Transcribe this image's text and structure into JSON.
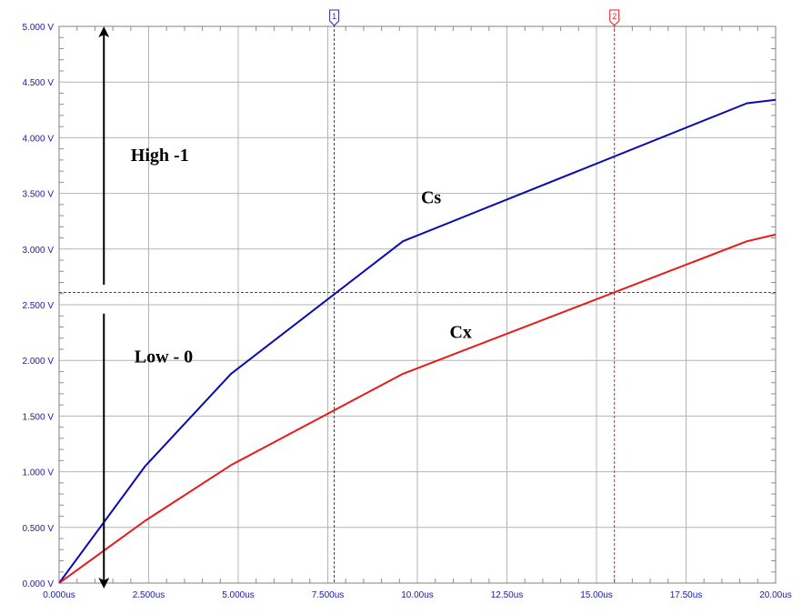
{
  "chart_data": {
    "type": "line",
    "title": "",
    "xlabel": "",
    "ylabel": "",
    "xlim": [
      0,
      20
    ],
    "ylim": [
      0,
      5
    ],
    "x_unit": "us",
    "y_unit": "V",
    "grid": true,
    "x_ticks": [
      0,
      2.5,
      5,
      7.5,
      10,
      12.5,
      15,
      17.5,
      20
    ],
    "x_tick_labels": [
      "0.000us",
      "2.500us",
      "5.000us",
      "7.500us",
      "10.00us",
      "12.50us",
      "15.00us",
      "17.50us",
      "20.00us"
    ],
    "y_ticks": [
      0,
      0.5,
      1,
      1.5,
      2,
      2.5,
      3,
      3.5,
      4,
      4.5,
      5
    ],
    "y_tick_labels": [
      "0.000 V",
      "0.500 V",
      "1.000 V",
      "1.500 V",
      "2.000 V",
      "2.500 V",
      "3.000 V",
      "3.500 V",
      "4.000 V",
      "4.500 V",
      "5.000 V"
    ],
    "series": [
      {
        "name": "Cs",
        "color": "#0a0ab4",
        "x": [
          0,
          2.4,
          4.8,
          9.6,
          19.2,
          20
        ],
        "y": [
          0,
          1.05,
          1.88,
          3.07,
          4.31,
          4.34
        ]
      },
      {
        "name": "Cx",
        "color": "#e81a1a",
        "x": [
          0,
          2.4,
          4.8,
          9.6,
          19.2,
          20
        ],
        "y": [
          0,
          0.56,
          1.06,
          1.88,
          3.07,
          3.13
        ]
      }
    ],
    "threshold": {
      "y": 2.61,
      "color": "#d01a1a"
    },
    "cursors": [
      {
        "label": "1",
        "x": 7.68,
        "color": "#2a2ab8"
      },
      {
        "label": "2",
        "x": 15.5,
        "color": "#e81a1a"
      }
    ],
    "annotations": [
      {
        "text": "High -1",
        "x": 2.0,
        "y": 3.79
      },
      {
        "text": "Low - 0",
        "x": 2.1,
        "y": 1.98
      },
      {
        "text": "Cs",
        "x": 10.1,
        "y": 3.41
      },
      {
        "text": "Cx",
        "x": 10.9,
        "y": 2.2
      }
    ],
    "arrows": [
      {
        "name": "high-arrow",
        "x": 1.25,
        "from_y": 2.68,
        "to_y": 4.95
      },
      {
        "name": "low-arrow",
        "x": 1.25,
        "from_y": 2.42,
        "to_y": 0.0
      }
    ]
  }
}
